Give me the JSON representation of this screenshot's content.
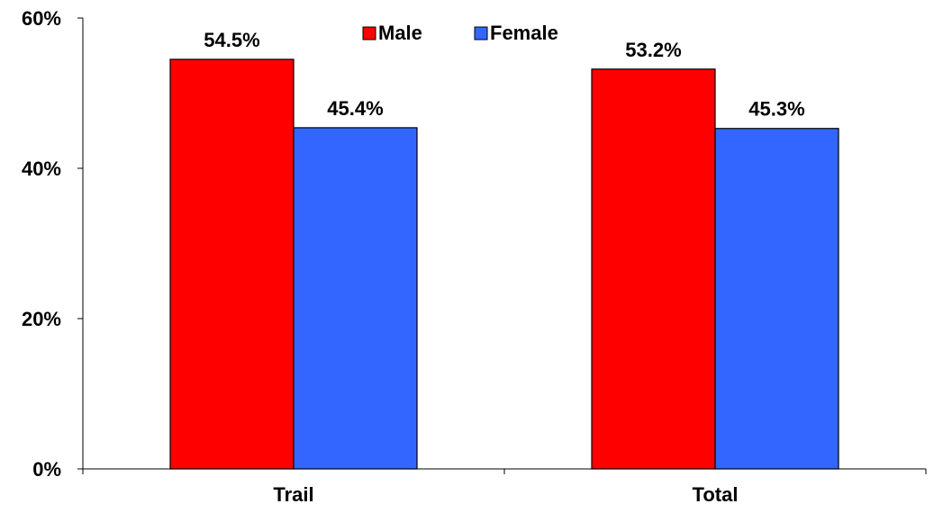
{
  "chart_data": {
    "type": "bar",
    "categories": [
      "Trail",
      "Total"
    ],
    "series": [
      {
        "name": "Male",
        "values": [
          54.5,
          53.2
        ],
        "labels": [
          "54.5%",
          "53.2%"
        ],
        "color": "#ff0000"
      },
      {
        "name": "Female",
        "values": [
          45.4,
          45.3
        ],
        "labels": [
          "45.4%",
          "45.3%"
        ],
        "color": "#3366ff"
      }
    ],
    "ylim": [
      0,
      60
    ],
    "yticks": [
      0,
      20,
      40,
      60
    ],
    "ytick_labels": [
      "0%",
      "20%",
      "40%",
      "60%"
    ],
    "grid": false,
    "legend_position": "top-center",
    "title": "",
    "xlabel": "",
    "ylabel": ""
  }
}
